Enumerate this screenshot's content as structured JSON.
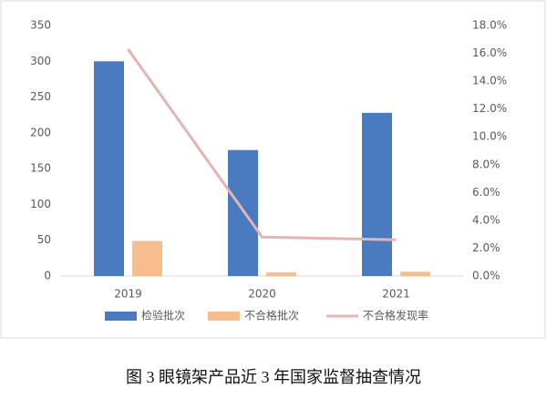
{
  "chart_data": {
    "type": "bar-line",
    "caption": "图 3  眼镜架产品近 3 年国家监督抽查情况",
    "categories": [
      "2019",
      "2020",
      "2021"
    ],
    "series": [
      {
        "name": "检验批次",
        "color": "#4a7abf",
        "type": "bar",
        "values": [
          300,
          176,
          228
        ]
      },
      {
        "name": "不合格批次",
        "color": "#f8bd8e",
        "type": "bar",
        "values": [
          49,
          5,
          6
        ]
      },
      {
        "name": "不合格发现率",
        "color": "#e4b4b4",
        "type": "line",
        "axis": "y2",
        "values": [
          16.3,
          2.8,
          2.6
        ]
      }
    ],
    "ylim": [
      0,
      350
    ],
    "yticks": [
      0,
      50,
      100,
      150,
      200,
      250,
      300,
      350
    ],
    "y2lim": [
      0,
      18
    ],
    "y2ticks": [
      {
        "value": 0,
        "label": "0.0%"
      },
      {
        "value": 2,
        "label": "2.0%"
      },
      {
        "value": 4,
        "label": "4.0%"
      },
      {
        "value": 6,
        "label": "6.0%"
      },
      {
        "value": 8,
        "label": "8.0%"
      },
      {
        "value": 10,
        "label": "10.0%"
      },
      {
        "value": 12,
        "label": "12.0%"
      },
      {
        "value": 14,
        "label": "14.0%"
      },
      {
        "value": 16,
        "label": "16.0%"
      },
      {
        "value": 18,
        "label": "18.0%"
      }
    ],
    "grid": false,
    "legend": "bottom"
  }
}
